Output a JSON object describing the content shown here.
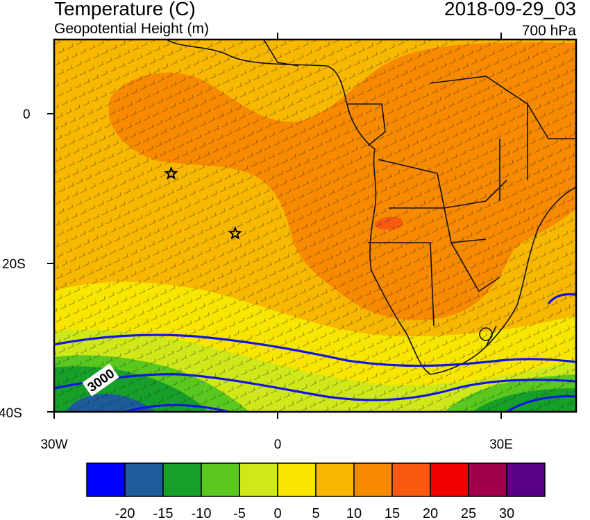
{
  "header": {
    "title_left": "Temperature (C)",
    "subtitle_left": "Geopotential Height (m)",
    "title_right": "2018-09-29_03",
    "subtitle_right": "700 hPa"
  },
  "axes": {
    "y_ticks": [
      "0",
      "20S",
      "40S"
    ],
    "x_ticks": [
      "30W",
      "0",
      "30E"
    ]
  },
  "contour_label": "3000",
  "markers": [
    {
      "name": "star-marker-1",
      "lon": -14.3,
      "lat": -8.0
    },
    {
      "name": "star-marker-2",
      "lon": -5.7,
      "lat": -16.0
    }
  ],
  "colorbar": {
    "colors": [
      "#0000ff",
      "#1e5b9a",
      "#16a02a",
      "#5ac81e",
      "#cfe81a",
      "#f8e600",
      "#f8b800",
      "#f88a00",
      "#f85a10",
      "#f00000",
      "#a0004a",
      "#5a0088"
    ],
    "labels": [
      "-20",
      "-15",
      "-10",
      "-5",
      "0",
      "5",
      "10",
      "15",
      "20",
      "25",
      "30"
    ]
  }
}
